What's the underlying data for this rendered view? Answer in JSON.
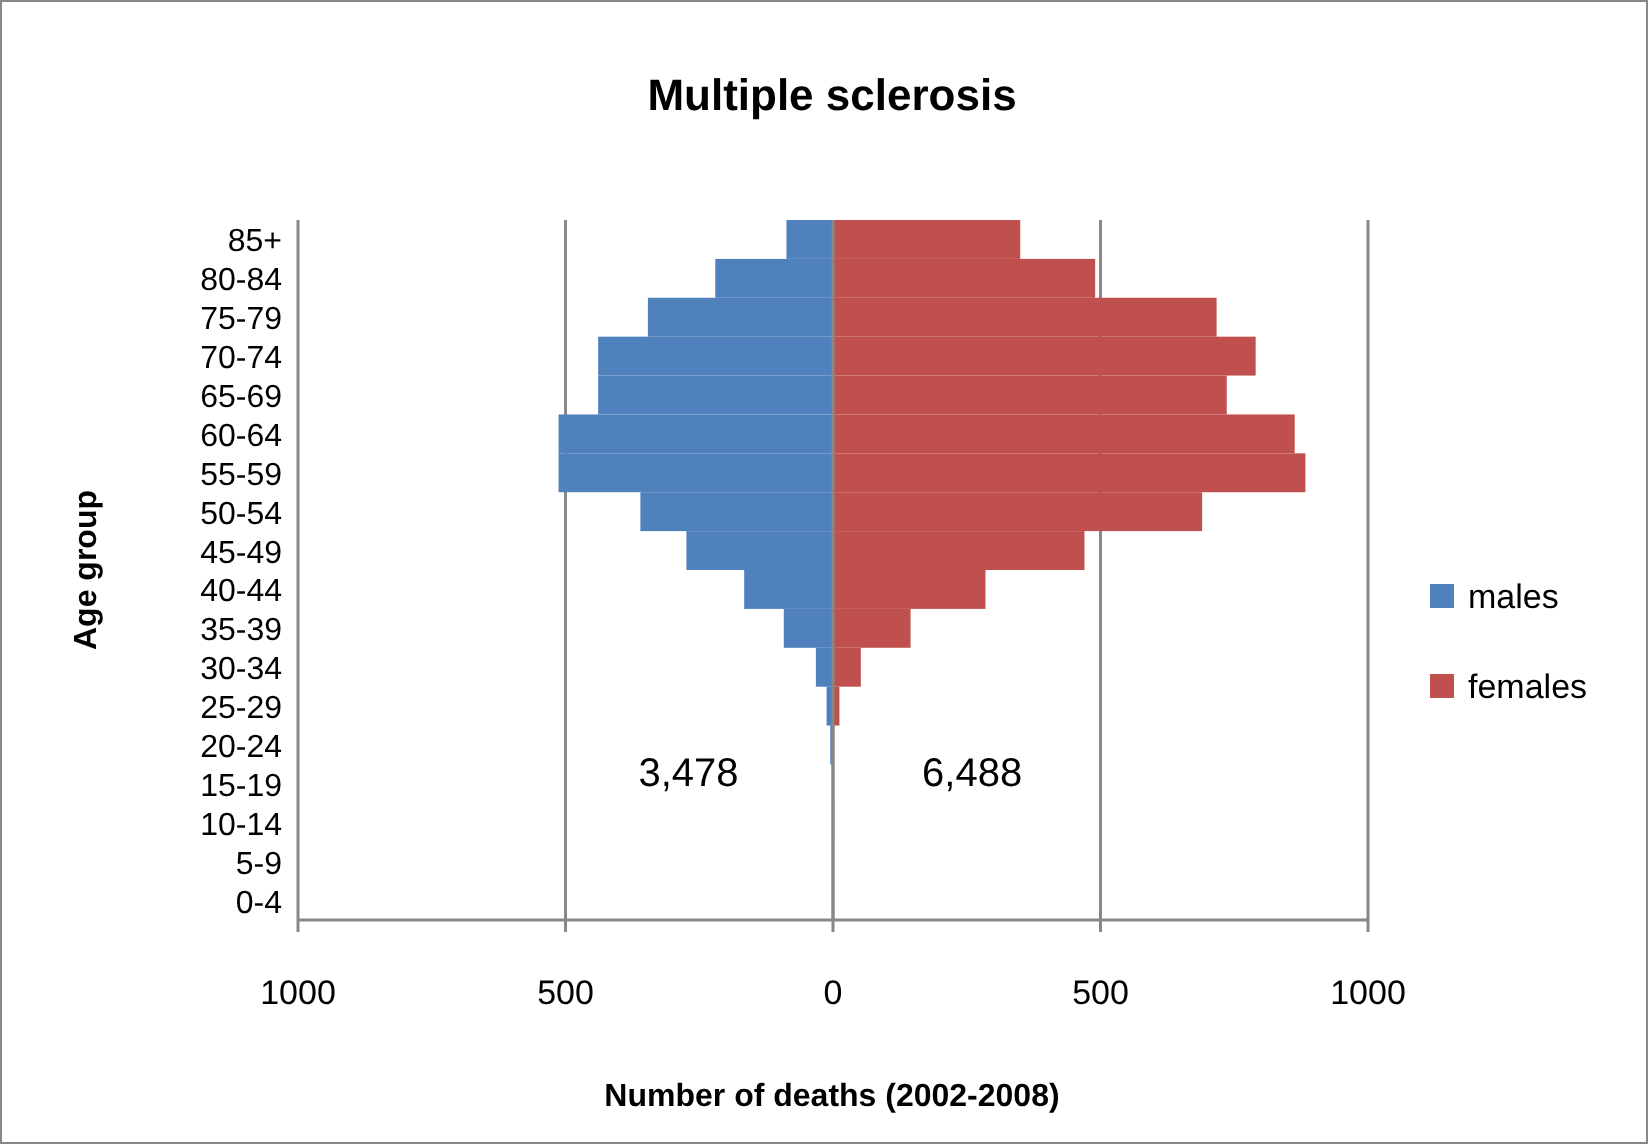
{
  "chart_data": {
    "type": "bar",
    "orientation": "horizontal",
    "stacked": true,
    "title": "Multiple sclerosis",
    "xlabel": "Number of deaths (2002-2008)",
    "ylabel": "Age group",
    "categories": [
      "85+",
      "80-84",
      "75-79",
      "70-74",
      "65-69",
      "60-64",
      "55-59",
      "50-54",
      "45-49",
      "40-44",
      "35-39",
      "30-34",
      "25-29",
      "20-24",
      "15-19",
      "10-14",
      "5-9",
      "0-4"
    ],
    "series": [
      {
        "name": "males",
        "color": "#4f81bd",
        "values": [
          -87,
          -220,
          -346,
          -439,
          -439,
          -513,
          -513,
          -360,
          -274,
          -166,
          -92,
          -32,
          -12,
          -5,
          0,
          0,
          0,
          0
        ]
      },
      {
        "name": "females",
        "color": "#c0504d",
        "values": [
          350,
          490,
          717,
          790,
          736,
          863,
          883,
          690,
          470,
          285,
          145,
          52,
          12,
          null,
          0,
          2,
          0,
          0
        ]
      }
    ],
    "xlim": [
      -1000,
      1000
    ],
    "xticks": [
      {
        "value": -1000,
        "label": "1000"
      },
      {
        "value": -500,
        "label": "500"
      },
      0,
      500,
      1000
    ],
    "grid": "x",
    "legend": "right",
    "annotations": [
      "3,478",
      "6,488"
    ]
  }
}
